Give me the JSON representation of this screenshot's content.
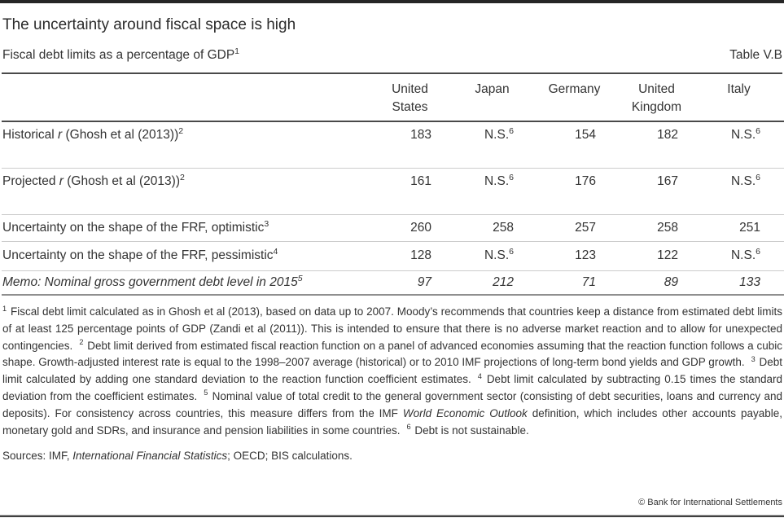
{
  "header": {
    "title": "The uncertainty around fiscal space is high",
    "subtitle": "Fiscal debt limits as a percentage of GDP",
    "subtitle_sup": "1",
    "table_label": "Table V.B"
  },
  "table": {
    "columns": [
      "United States",
      "Japan",
      "Germany",
      "United Kingdom",
      "Italy"
    ],
    "rows": [
      {
        "label": {
          "pre": "Historical ",
          "em": "r",
          "post": " (Ghosh et al (2013))",
          "sup": "2"
        },
        "cells": [
          {
            "v": "183",
            "s": ""
          },
          {
            "v": "N.S.",
            "s": "6"
          },
          {
            "v": "154",
            "s": ""
          },
          {
            "v": "182",
            "s": ""
          },
          {
            "v": "N.S.",
            "s": "6"
          }
        ]
      },
      {
        "label": {
          "pre": "Projected ",
          "em": "r",
          "post": " (Ghosh et al (2013))",
          "sup": "2"
        },
        "cells": [
          {
            "v": "161",
            "s": ""
          },
          {
            "v": "N.S.",
            "s": "6"
          },
          {
            "v": "176",
            "s": ""
          },
          {
            "v": "167",
            "s": ""
          },
          {
            "v": "N.S.",
            "s": "6"
          }
        ]
      },
      {
        "label": {
          "pre": "Uncertainty on the shape of the FRF, optimistic",
          "em": "",
          "post": "",
          "sup": "3"
        },
        "cells": [
          {
            "v": "260",
            "s": ""
          },
          {
            "v": "258",
            "s": ""
          },
          {
            "v": "257",
            "s": ""
          },
          {
            "v": "258",
            "s": ""
          },
          {
            "v": "251",
            "s": ""
          }
        ]
      },
      {
        "label": {
          "pre": "Uncertainty on the shape of the FRF, pessimistic",
          "em": "",
          "post": "",
          "sup": "4"
        },
        "cells": [
          {
            "v": "128",
            "s": ""
          },
          {
            "v": "N.S.",
            "s": "6"
          },
          {
            "v": "123",
            "s": ""
          },
          {
            "v": "122",
            "s": ""
          },
          {
            "v": "N.S.",
            "s": "6"
          }
        ]
      },
      {
        "label": {
          "pre": "Memo: Nominal gross government debt level in 2015",
          "em": "",
          "post": "",
          "sup": "5"
        },
        "cells": [
          {
            "v": "97",
            "s": ""
          },
          {
            "v": "212",
            "s": ""
          },
          {
            "v": "71",
            "s": ""
          },
          {
            "v": "89",
            "s": ""
          },
          {
            "v": "133",
            "s": ""
          }
        ]
      }
    ]
  },
  "footnotes": [
    {
      "sup": "1",
      "text": "Fiscal debt limit calculated as in Ghosh et al (2013), based on data up to 2007. Moody’s recommends that countries keep a distance from estimated debt limits of at least 125 percentage points of GDP (Zandi et al (2011)). This is intended to ensure that there is no adverse market reaction and to allow for unexpected contingencies."
    },
    {
      "sup": "2",
      "text": "Debt limit derived from estimated fiscal reaction function on a panel of advanced economies assuming that the reaction function follows a cubic shape. Growth-adjusted interest rate is equal to the 1998–2007 average (historical) or to 2010 IMF projections of long-term bond yields and GDP growth."
    },
    {
      "sup": "3",
      "text": "Debt limit calculated by adding one standard deviation to the reaction function coefficient estimates."
    },
    {
      "sup": "4",
      "text": "Debt limit calculated by subtracting 0.15 times the standard deviation from the coefficient estimates."
    },
    {
      "sup": "5",
      "pre": "Nominal value of total credit to the general government sector (consisting of debt securities, loans and currency and deposits). For consistency across countries, this measure differs from the IMF ",
      "italic": "World Economic Outlook",
      "post": " definition, which includes other accounts payable, monetary gold and SDRs, and insurance and pension liabilities in some countries."
    },
    {
      "sup": "6",
      "text": "Debt is not sustainable."
    }
  ],
  "sources": {
    "pre": "Sources: IMF, ",
    "italic": "International Financial Statistics",
    "post": "; OECD; BIS calculations."
  },
  "copyright": "© Bank for International Settlements",
  "chart_data": {
    "type": "table",
    "title": "Fiscal debt limits as a percentage of GDP",
    "categories": [
      "United States",
      "Japan",
      "Germany",
      "United Kingdom",
      "Italy"
    ],
    "series": [
      {
        "name": "Historical r (Ghosh et al (2013))",
        "values": [
          "183",
          "N.S.",
          "154",
          "182",
          "N.S."
        ]
      },
      {
        "name": "Projected r (Ghosh et al (2013))",
        "values": [
          "161",
          "N.S.",
          "176",
          "167",
          "N.S."
        ]
      },
      {
        "name": "Uncertainty on the shape of the FRF, optimistic",
        "values": [
          260,
          258,
          257,
          258,
          251
        ]
      },
      {
        "name": "Uncertainty on the shape of the FRF, pessimistic",
        "values": [
          "128",
          "N.S.",
          "123",
          "122",
          "N.S."
        ]
      },
      {
        "name": "Memo: Nominal gross government debt level in 2015",
        "values": [
          97,
          212,
          71,
          89,
          133
        ]
      }
    ]
  }
}
